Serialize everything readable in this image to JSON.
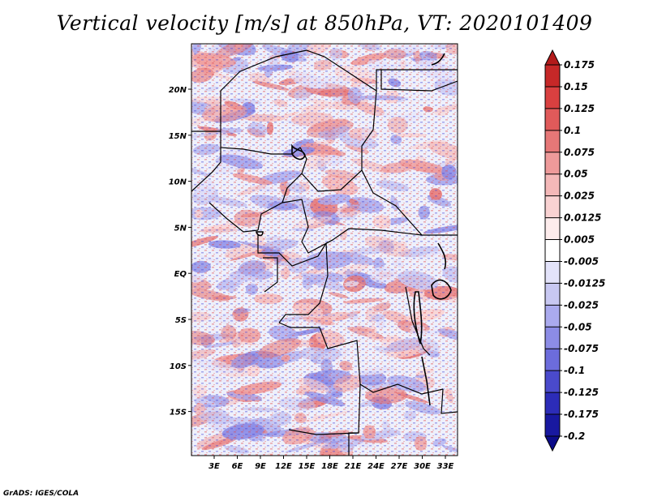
{
  "title": "Vertical velocity [m/s] at 850hPa, VT: 2020101409",
  "credit": "GrADS: IGES/COLA",
  "map": {
    "lon_labels": [
      "3E",
      "6E",
      "9E",
      "12E",
      "15E",
      "18E",
      "21E",
      "24E",
      "27E",
      "30E",
      "33E"
    ],
    "lat_labels": [
      "20N",
      "15N",
      "10N",
      "5N",
      "EQ",
      "5S",
      "10S",
      "15S"
    ]
  },
  "colorbar": {
    "levels": [
      "0.175",
      "0.15",
      "0.125",
      "0.1",
      "0.075",
      "0.05",
      "0.025",
      "0.0125",
      "0.005",
      "-0.005",
      "-0.0125",
      "-0.025",
      "-0.05",
      "-0.075",
      "-0.1",
      "-0.125",
      "-0.175",
      "-0.2"
    ],
    "colors": [
      "#b31b1b",
      "#c62828",
      "#d94040",
      "#e05a5a",
      "#e67777",
      "#ee9a9a",
      "#f4b8b8",
      "#f9d2d2",
      "#fdecec",
      "#ffffff",
      "#e3e3fa",
      "#c8c8f2",
      "#aaaaee",
      "#8c8ce6",
      "#6c6cdc",
      "#4a4acc",
      "#2c2cb8",
      "#1818a0",
      "#0c0c8a"
    ]
  }
}
